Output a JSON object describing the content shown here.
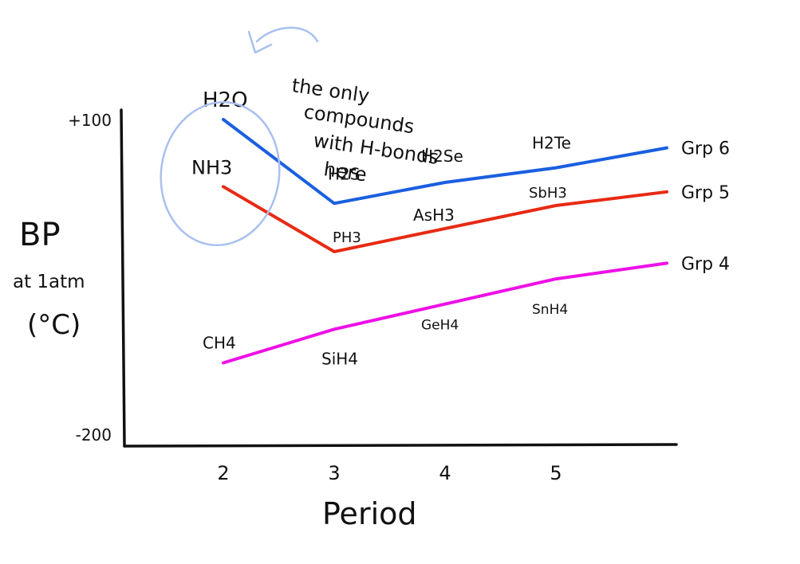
{
  "chart_data": {
    "type": "line",
    "title": "",
    "xlabel": "Period",
    "ylabel": {
      "line1": "BP",
      "line2": "at 1atm",
      "line3": "(°C)"
    },
    "yticks": [
      {
        "label": "+100",
        "value": 100
      },
      {
        "label": "-200",
        "value": -200
      }
    ],
    "ylim": [
      -200,
      100
    ],
    "xticks": [
      {
        "label": "2",
        "value": 2
      },
      {
        "label": "3",
        "value": 3
      },
      {
        "label": "4",
        "value": 4
      },
      {
        "label": "5",
        "value": 5
      }
    ],
    "xlim": [
      1,
      6
    ],
    "series": [
      {
        "name": "Grp 6",
        "color": "#1a5fe0",
        "points": [
          {
            "x": 2,
            "y": 100,
            "label": "H2O",
            "label_color": "#2a6fe8"
          },
          {
            "x": 3,
            "y": 20,
            "label": "H2S"
          },
          {
            "x": 4,
            "y": 40,
            "label": "H2Se"
          },
          {
            "x": 5,
            "y": 54,
            "label": "H2Te"
          },
          {
            "x": 6,
            "y": 73
          }
        ]
      },
      {
        "name": "Grp 5",
        "color": "#e82a14",
        "points": [
          {
            "x": 2,
            "y": 36,
            "label": "NH3",
            "label_color": "#e82a14"
          },
          {
            "x": 3,
            "y": -26,
            "label": "PH3"
          },
          {
            "x": 4,
            "y": -4,
            "label": "AsH3"
          },
          {
            "x": 5,
            "y": 18,
            "label": "SbH3"
          },
          {
            "x": 6,
            "y": 31
          }
        ]
      },
      {
        "name": "Grp 4",
        "color": "#ee10e6",
        "points": [
          {
            "x": 2,
            "y": -132,
            "label": "CH4"
          },
          {
            "x": 3,
            "y": -100,
            "label": "SiH4"
          },
          {
            "x": 4,
            "y": -76,
            "label": "GeH4"
          },
          {
            "x": 5,
            "y": -52,
            "label": "SnH4"
          },
          {
            "x": 6,
            "y": -37
          }
        ]
      }
    ],
    "annotation": {
      "text": "the only compounds with H-bonds here",
      "lines": [
        "the only",
        "compounds",
        "with H-bonds",
        "here"
      ],
      "color": "#a9c0ef"
    }
  }
}
